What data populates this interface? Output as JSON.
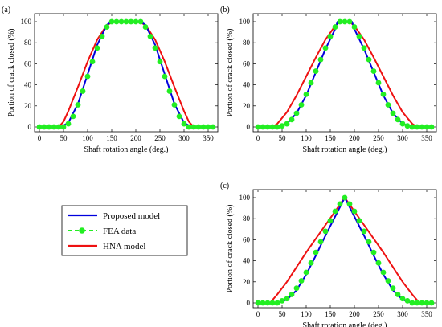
{
  "chart_data": [
    {
      "panel": "(a)",
      "type": "line",
      "xlabel": "Shaft rotation angle (deg.)",
      "ylabel": "Portion of crack closed (%)",
      "xlim": [
        0,
        360
      ],
      "ylim": [
        0,
        100
      ],
      "xticks": [
        0,
        50,
        100,
        150,
        200,
        250,
        300,
        350
      ],
      "yticks": [
        0,
        20,
        40,
        60,
        80,
        100
      ],
      "series": [
        {
          "key": "proposed",
          "color": "#0000dd",
          "style": "solid",
          "x": [
            0,
            45,
            60,
            80,
            100,
            120,
            140,
            150,
            210,
            220,
            240,
            260,
            280,
            300,
            315,
            360
          ],
          "y": [
            0,
            0,
            4,
            22,
            50,
            78,
            97,
            100,
            100,
            97,
            78,
            50,
            22,
            4,
            0,
            0
          ]
        },
        {
          "key": "fea",
          "color": "#22ee22",
          "style": "dots",
          "x": [
            0,
            10,
            20,
            30,
            40,
            50,
            60,
            70,
            80,
            90,
            100,
            110,
            120,
            130,
            140,
            150,
            160,
            170,
            180,
            190,
            200,
            210,
            220,
            230,
            240,
            250,
            260,
            270,
            280,
            290,
            300,
            310,
            320,
            330,
            340,
            350,
            360
          ],
          "y": [
            0,
            0,
            0,
            0,
            0,
            0,
            3,
            10,
            21,
            34,
            48,
            62,
            75,
            86,
            95,
            100,
            100,
            100,
            100,
            100,
            100,
            100,
            95,
            86,
            75,
            62,
            48,
            34,
            21,
            10,
            3,
            0,
            0,
            0,
            0,
            0,
            0
          ]
        },
        {
          "key": "hna",
          "color": "#ee1111",
          "style": "solid",
          "x": [
            0,
            40,
            50,
            60,
            80,
            100,
            120,
            140,
            155,
            205,
            220,
            240,
            260,
            280,
            300,
            310,
            320,
            360
          ],
          "y": [
            0,
            0,
            5,
            15,
            38,
            62,
            83,
            97,
            100,
            100,
            97,
            83,
            62,
            38,
            15,
            5,
            0,
            0
          ]
        }
      ]
    },
    {
      "panel": "(b)",
      "type": "line",
      "xlabel": "Shaft rotation angle (deg.)",
      "ylabel": "Portion of crack closed (%)",
      "xlim": [
        0,
        360
      ],
      "ylim": [
        0,
        100
      ],
      "xticks": [
        0,
        50,
        100,
        150,
        200,
        250,
        300,
        350
      ],
      "yticks": [
        0,
        20,
        40,
        60,
        80,
        100
      ],
      "series": [
        {
          "key": "proposed",
          "color": "#0000dd",
          "style": "solid",
          "x": [
            0,
            40,
            60,
            80,
            100,
            120,
            140,
            160,
            165,
            195,
            200,
            220,
            240,
            260,
            280,
            300,
            320,
            360
          ],
          "y": [
            0,
            0,
            3,
            13,
            30,
            52,
            74,
            93,
            100,
            100,
            93,
            74,
            52,
            30,
            13,
            3,
            0,
            0
          ]
        },
        {
          "key": "fea",
          "color": "#22ee22",
          "style": "dots",
          "x": [
            0,
            10,
            20,
            30,
            40,
            50,
            60,
            70,
            80,
            90,
            100,
            110,
            120,
            130,
            140,
            150,
            160,
            170,
            180,
            190,
            200,
            210,
            220,
            230,
            240,
            250,
            260,
            270,
            280,
            290,
            300,
            310,
            320,
            330,
            340,
            350,
            360
          ],
          "y": [
            0,
            0,
            0,
            0,
            0,
            1,
            3,
            7,
            13,
            21,
            31,
            42,
            53,
            64,
            75,
            86,
            95,
            100,
            100,
            100,
            95,
            86,
            75,
            64,
            53,
            42,
            31,
            21,
            13,
            7,
            3,
            1,
            0,
            0,
            0,
            0,
            0
          ]
        },
        {
          "key": "hna",
          "color": "#ee1111",
          "style": "solid",
          "x": [
            0,
            30,
            40,
            60,
            80,
            100,
            120,
            140,
            160,
            170,
            190,
            200,
            220,
            240,
            260,
            280,
            300,
            320,
            330,
            360
          ],
          "y": [
            0,
            0,
            3,
            14,
            30,
            48,
            66,
            83,
            96,
            100,
            100,
            96,
            83,
            66,
            48,
            30,
            14,
            3,
            0,
            0
          ]
        }
      ]
    },
    {
      "panel": "(c)",
      "type": "line",
      "xlabel": "Shaft rotation angle (deg.)",
      "ylabel": "Portion of crack closed (%)",
      "xlim": [
        0,
        360
      ],
      "ylim": [
        0,
        100
      ],
      "xticks": [
        0,
        50,
        100,
        150,
        200,
        250,
        300,
        350
      ],
      "yticks": [
        0,
        20,
        40,
        60,
        80,
        100
      ],
      "series": [
        {
          "key": "proposed",
          "color": "#0000dd",
          "style": "solid",
          "x": [
            0,
            40,
            60,
            80,
            100,
            120,
            140,
            160,
            180,
            200,
            220,
            240,
            260,
            280,
            300,
            320,
            360
          ],
          "y": [
            0,
            0,
            3,
            12,
            27,
            45,
            64,
            82,
            100,
            82,
            64,
            45,
            27,
            12,
            3,
            0,
            0
          ]
        },
        {
          "key": "fea",
          "color": "#22ee22",
          "style": "dots",
          "x": [
            0,
            10,
            20,
            30,
            40,
            50,
            60,
            70,
            80,
            90,
            100,
            110,
            120,
            130,
            140,
            150,
            160,
            170,
            180,
            190,
            200,
            210,
            220,
            230,
            240,
            250,
            260,
            270,
            280,
            290,
            300,
            310,
            320,
            330,
            340,
            350,
            360
          ],
          "y": [
            0,
            0,
            0,
            0,
            0,
            2,
            4,
            8,
            14,
            21,
            29,
            38,
            48,
            58,
            68,
            78,
            87,
            94,
            100,
            94,
            87,
            78,
            68,
            58,
            48,
            38,
            29,
            21,
            14,
            8,
            4,
            2,
            0,
            0,
            0,
            0,
            0
          ]
        },
        {
          "key": "hna",
          "color": "#ee1111",
          "style": "solid",
          "x": [
            0,
            25,
            40,
            60,
            80,
            100,
            120,
            140,
            160,
            180,
            200,
            220,
            240,
            260,
            280,
            300,
            320,
            335,
            360
          ],
          "y": [
            0,
            0,
            8,
            20,
            34,
            48,
            61,
            74,
            87,
            100,
            87,
            74,
            61,
            48,
            34,
            20,
            8,
            0,
            0
          ]
        }
      ]
    }
  ],
  "legend": {
    "items": [
      {
        "key": "proposed",
        "label": "Proposed model",
        "color": "#0000dd",
        "style": "solid"
      },
      {
        "key": "fea",
        "label": "FEA  data",
        "color": "#22ee22",
        "style": "dashed-dot"
      },
      {
        "key": "hna",
        "label": "HNA model",
        "color": "#ee1111",
        "style": "solid"
      }
    ]
  }
}
